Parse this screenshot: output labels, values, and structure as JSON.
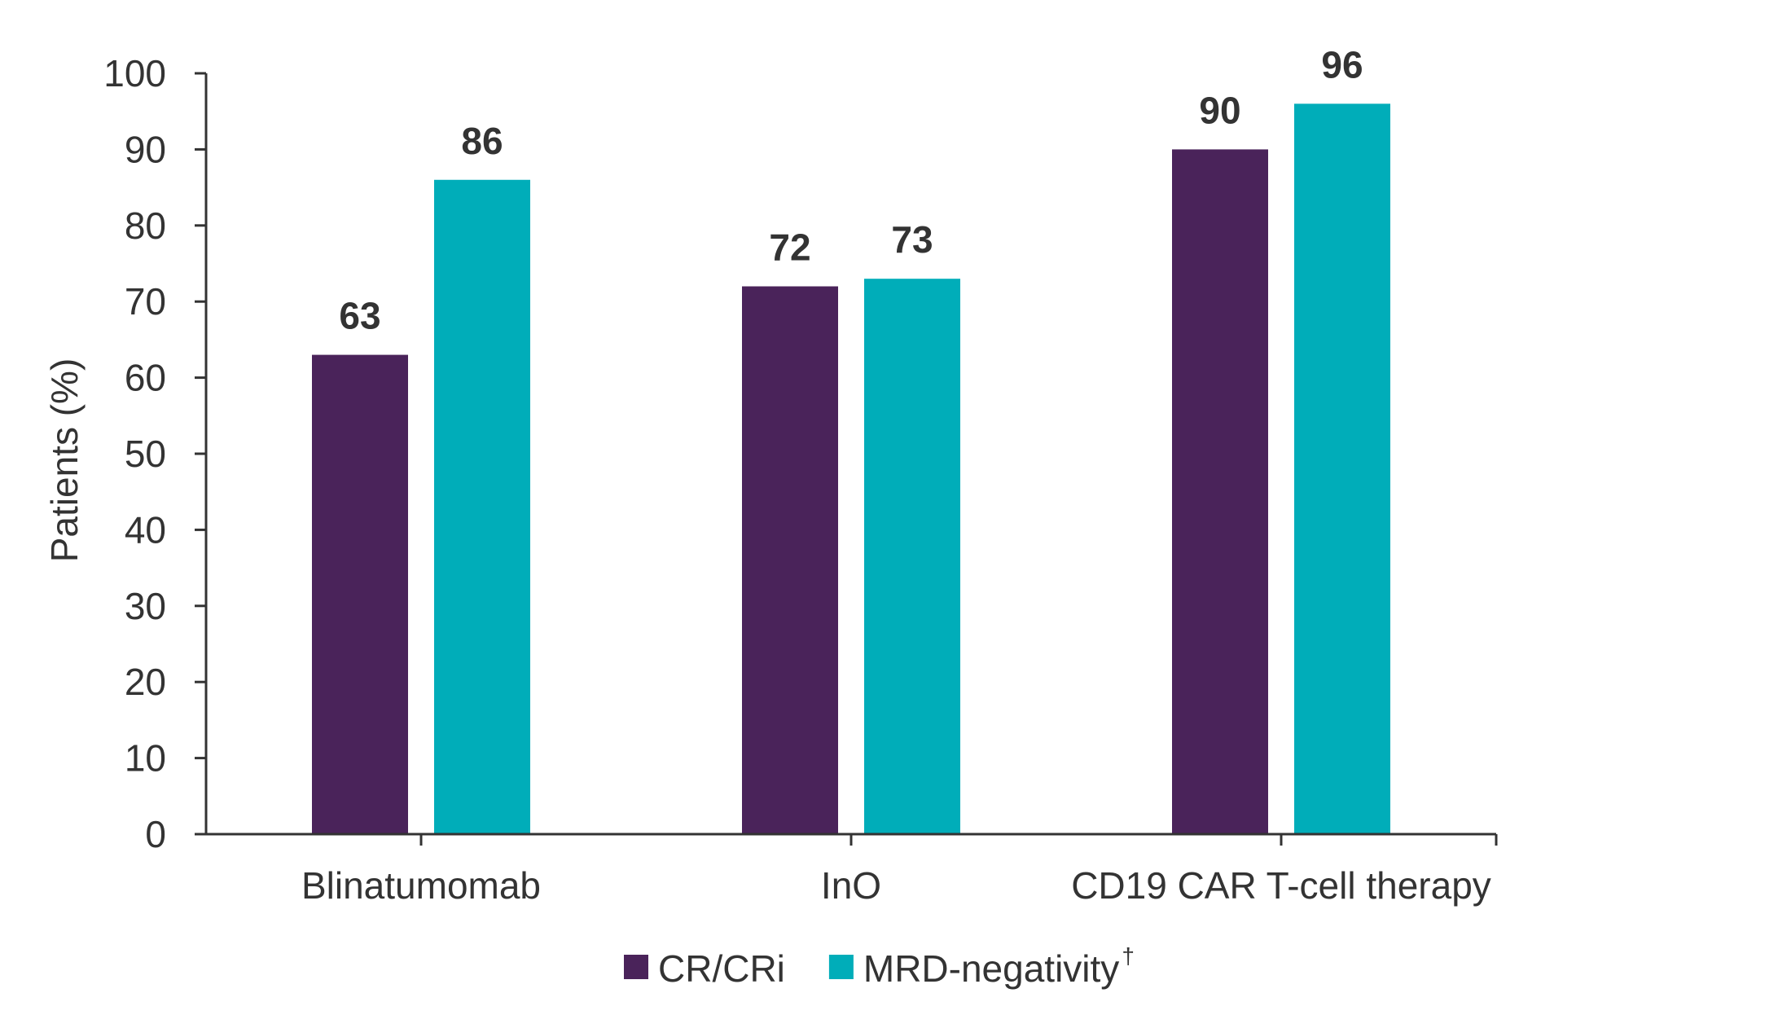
{
  "chart_data": {
    "type": "bar",
    "categories": [
      "Blinatumomab",
      "InO",
      "CD19 CAR T-cell therapy"
    ],
    "series": [
      {
        "name": "CR/CRi",
        "values": [
          63,
          72,
          90
        ],
        "color": "#4a235a"
      },
      {
        "name": "MRD-negativity",
        "name_superscript": "†",
        "values": [
          86,
          73,
          96
        ],
        "color": "#00adb9"
      }
    ],
    "ylabel": "Patients (%)",
    "xlabel": "",
    "ylim": [
      0,
      100
    ],
    "yticks": [
      0,
      10,
      20,
      30,
      40,
      50,
      60,
      70,
      80,
      90,
      100
    ],
    "grid": false,
    "legend_position": "bottom-center"
  }
}
